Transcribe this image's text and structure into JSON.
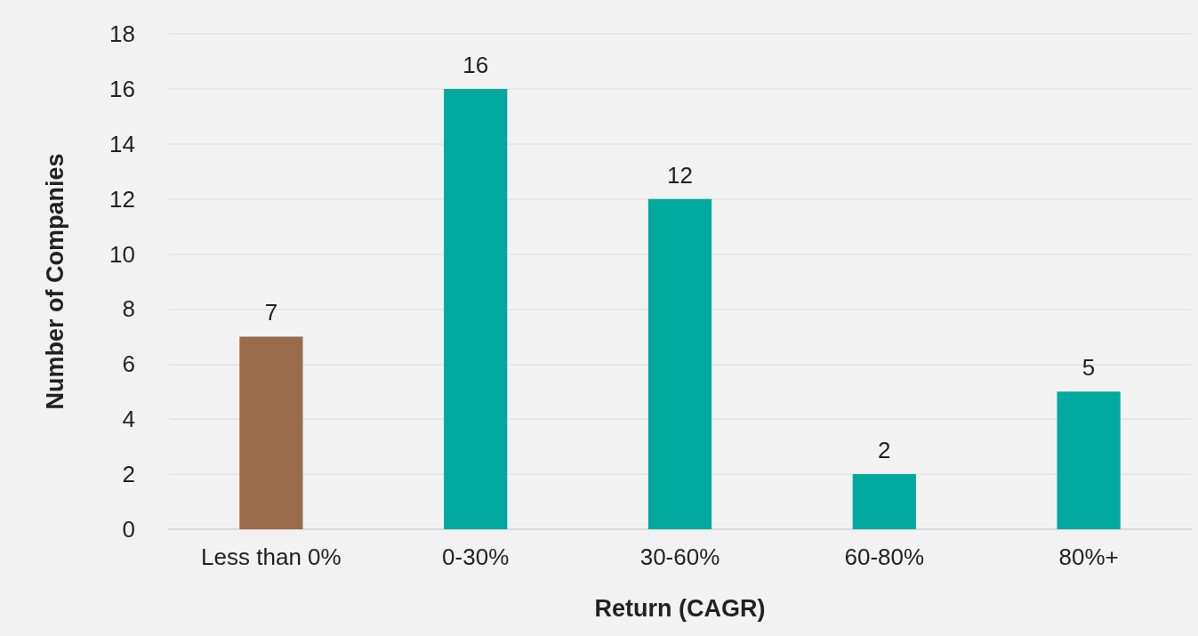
{
  "chart_data": {
    "type": "bar",
    "xlabel": "Return (CAGR)",
    "ylabel": "Number of Companies",
    "categories": [
      "Less than 0%",
      "0-30%",
      "30-60%",
      "60-80%",
      "80%+"
    ],
    "values": [
      7,
      16,
      12,
      2,
      5
    ],
    "colors": [
      "#996b4b",
      "#00a99d",
      "#00a99d",
      "#00a99d",
      "#00a99d"
    ],
    "ylim": [
      0,
      18
    ],
    "yticks": [
      0,
      2,
      4,
      6,
      8,
      10,
      12,
      14,
      16,
      18
    ],
    "grid": "y",
    "data_labels": true
  }
}
